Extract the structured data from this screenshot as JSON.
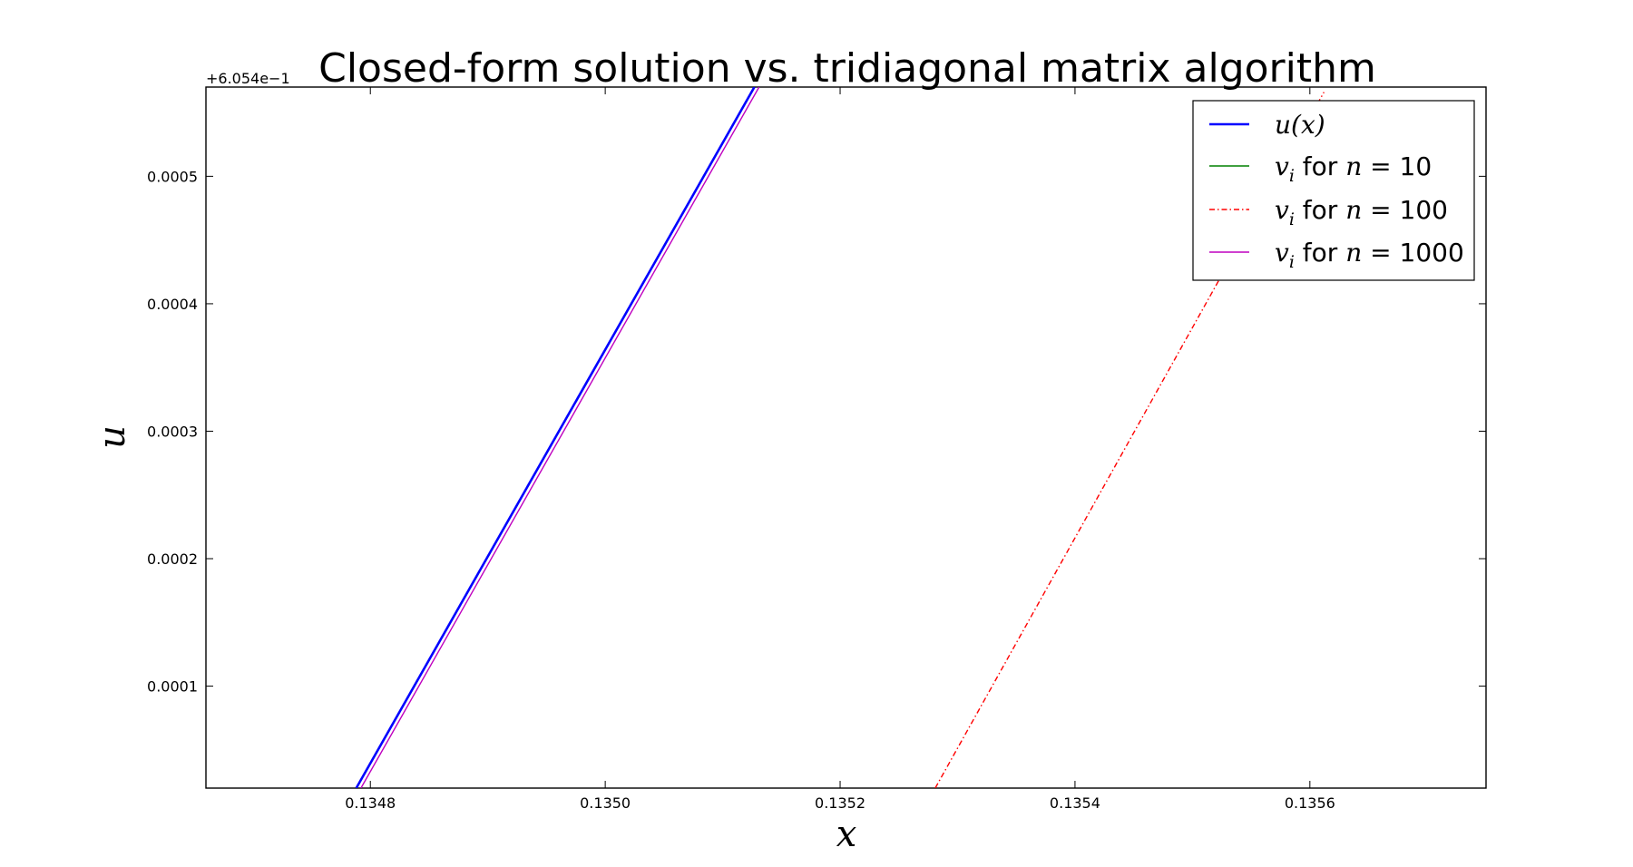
{
  "chart_data": {
    "type": "line",
    "title": "Closed-form solution vs. tridiagonal matrix algorithm",
    "xlabel": "x",
    "ylabel": "u",
    "y_offset_label": "+6.054e−1",
    "xlim": [
      0.13466,
      0.13575
    ],
    "ylim": [
      2e-05,
      0.00057
    ],
    "x_ticks": [
      0.1348,
      0.135,
      0.1352,
      0.1354,
      0.1356
    ],
    "x_tick_labels": [
      "0.1348",
      "0.1350",
      "0.1352",
      "0.1354",
      "0.1356"
    ],
    "y_ticks": [
      0.0001,
      0.0002,
      0.0003,
      0.0004,
      0.0005
    ],
    "y_tick_labels": [
      "0.0001",
      "0.0002",
      "0.0003",
      "0.0004",
      "0.0005"
    ],
    "grid": false,
    "legend_position": "top-right",
    "series": [
      {
        "key": "u_x",
        "color": "#0000ff",
        "style": "solid",
        "x": [
          0.134788,
          0.135127
        ],
        "y": [
          2e-05,
          0.00057
        ]
      },
      {
        "key": "n10",
        "color": "#008000",
        "style": "solid",
        "x": [],
        "y": []
      },
      {
        "key": "n100",
        "color": "#ff0000",
        "style": "dashdot",
        "x": [
          0.135281,
          0.135612
        ],
        "y": [
          2e-05,
          0.000566
        ]
      },
      {
        "key": "n1000",
        "color": "#bf00bf",
        "style": "solid",
        "x": [
          0.134792,
          0.135131
        ],
        "y": [
          2e-05,
          0.00057
        ]
      }
    ],
    "legend": [
      {
        "math_main": "u(x)",
        "math_sub": "",
        "text": "",
        "n_value": ""
      },
      {
        "math_main": "v",
        "math_sub": "i",
        "text": " for ",
        "n_symbol": "n",
        "eq": " = ",
        "n_value": "10"
      },
      {
        "math_main": "v",
        "math_sub": "i",
        "text": " for ",
        "n_symbol": "n",
        "eq": " = ",
        "n_value": "100"
      },
      {
        "math_main": "v",
        "math_sub": "i",
        "text": " for ",
        "n_symbol": "n",
        "eq": " = ",
        "n_value": "1000"
      }
    ]
  }
}
